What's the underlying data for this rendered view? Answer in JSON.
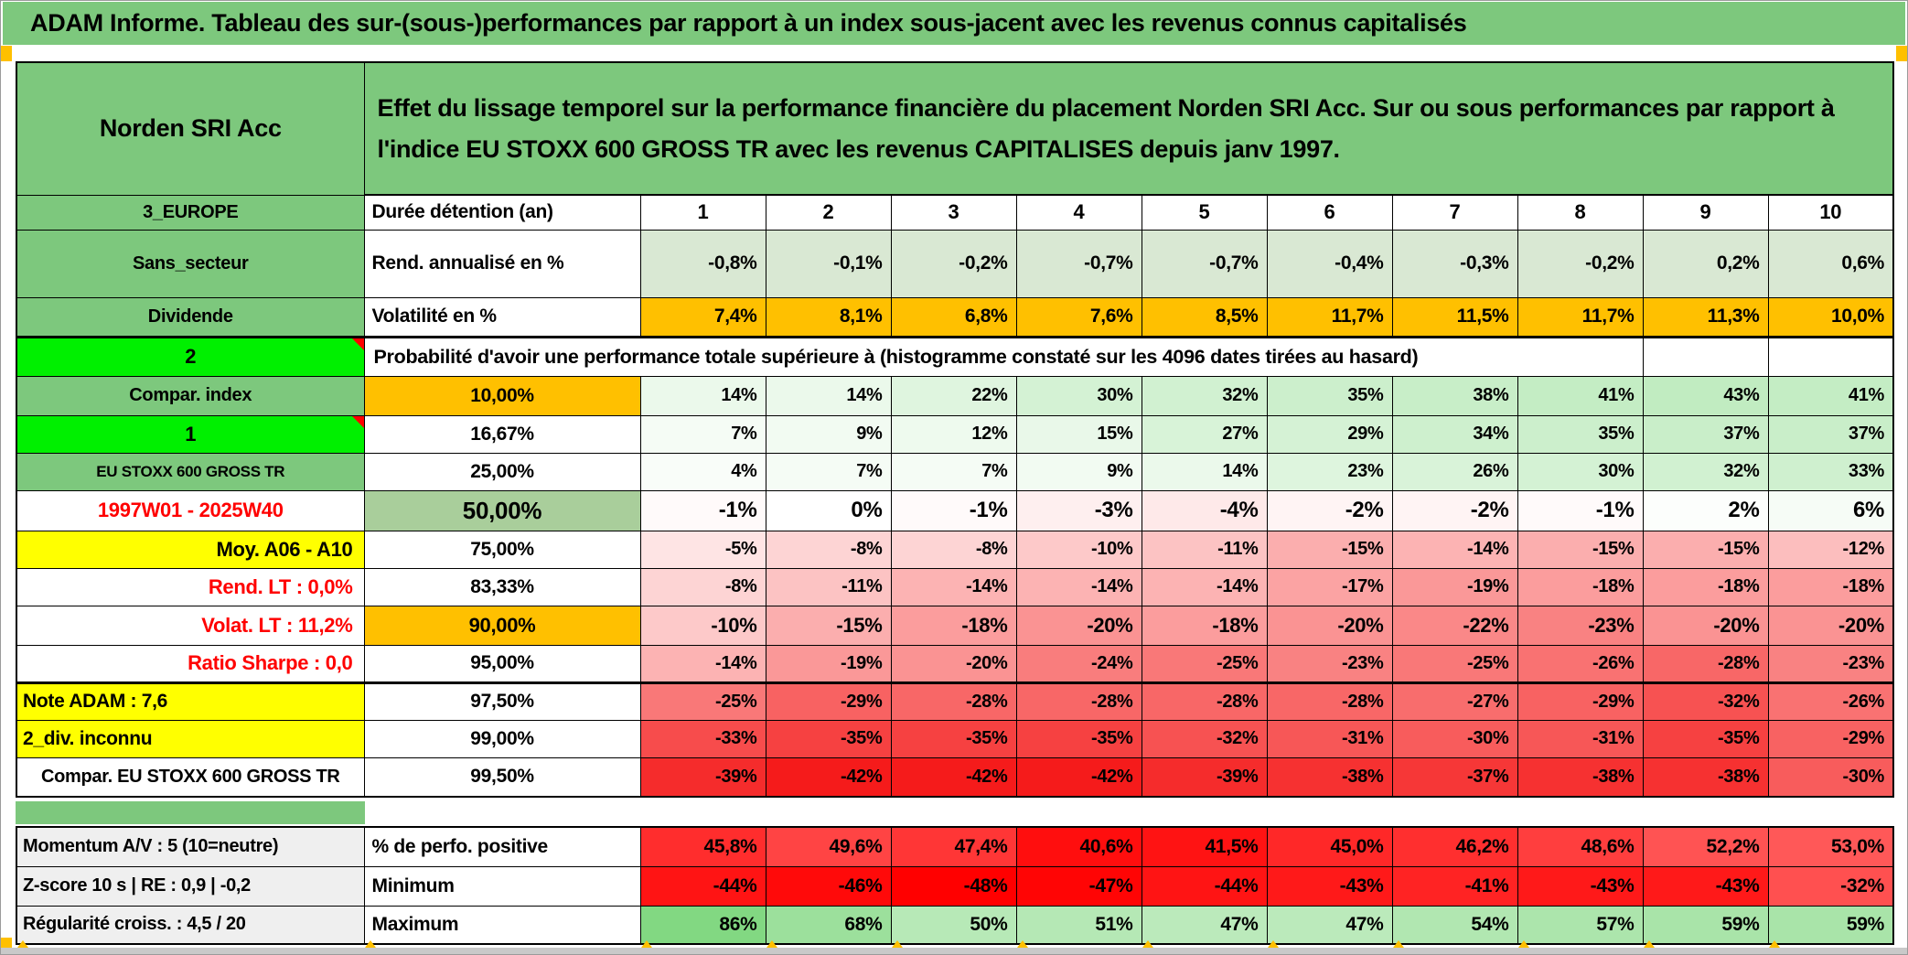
{
  "title": "ADAM Informe. Tableau des sur-(sous-)performances par rapport à un index sous-jacent avec les revenus connus capitalisés",
  "header": {
    "fund_name": "Norden SRI Acc",
    "description": "Effet du lissage temporel sur la performance financière du placement Norden SRI Acc. Sur ou sous performances par rapport à l'indice EU STOXX 600 GROSS TR avec les revenus CAPITALISES depuis janv 1997."
  },
  "colors": {
    "header_green": "#7DC87D",
    "bright_green": "#00F000",
    "orange": "#FFC000",
    "yellow": "#FFFF00",
    "sage_green": "#A9CE9B",
    "rend_row_green": "#D9E8D3",
    "gray_label": "#EFEFEF",
    "red_text": "#FF0000"
  },
  "table": {
    "prob_header": "Probabilité d'avoir une performance totale supérieure à (histogramme constaté sur les 4096 dates tirées au hasard)",
    "rows": [
      {
        "left": "3_EUROPE",
        "leftStyle": "green",
        "mid": "Durée détention (an)",
        "midStyle": "deflabel",
        "cellStyle": "colhead",
        "cells": [
          "1",
          "2",
          "3",
          "4",
          "5",
          "6",
          "7",
          "8",
          "9",
          "10"
        ]
      },
      {
        "left": "Sans_secteur",
        "leftStyle": "green",
        "mid": "Rend. annualisé en %",
        "midStyle": "deflabel",
        "cellStyle": "rend",
        "cells": [
          "-0,8%",
          "-0,1%",
          "-0,2%",
          "-0,7%",
          "-0,7%",
          "-0,4%",
          "-0,3%",
          "-0,2%",
          "0,2%",
          "0,6%"
        ]
      },
      {
        "left": "Dividende",
        "leftStyle": "green",
        "mid": "Volatilité en %",
        "midStyle": "deflabel",
        "cellStyle": "vol",
        "thick": true,
        "cells": [
          "7,4%",
          "8,1%",
          "6,8%",
          "7,6%",
          "8,5%",
          "11,7%",
          "11,5%",
          "11,7%",
          "11,3%",
          "10,0%"
        ]
      },
      {
        "left": "2",
        "leftStyle": "bright",
        "corner": true,
        "span": true
      },
      {
        "left": "Compar. index",
        "leftStyle": "green",
        "mid": "10,00%",
        "midStyle": "orangePct",
        "cellStyle": "prob",
        "cells": [
          "14%",
          "14%",
          "22%",
          "30%",
          "32%",
          "35%",
          "38%",
          "41%",
          "43%",
          "41%"
        ]
      },
      {
        "left": "1",
        "leftStyle": "bright",
        "corner": true,
        "mid": "16,67%",
        "midStyle": "pct",
        "cellStyle": "prob",
        "cells": [
          "7%",
          "9%",
          "12%",
          "15%",
          "27%",
          "29%",
          "34%",
          "35%",
          "37%",
          "37%"
        ]
      },
      {
        "left": "EU STOXX 600 GROSS TR",
        "leftStyle": "greenSmall",
        "mid": "25,00%",
        "midStyle": "pct",
        "cellStyle": "prob",
        "cells": [
          "4%",
          "7%",
          "7%",
          "9%",
          "14%",
          "23%",
          "26%",
          "30%",
          "32%",
          "33%"
        ]
      },
      {
        "left": "1997W01 - 2025W40",
        "leftStyle": "redCenter",
        "mid": "50,00%",
        "midStyle": "sageBig",
        "cellStyle": "probBig",
        "cells": [
          "-1%",
          "0%",
          "-1%",
          "-3%",
          "-4%",
          "-2%",
          "-2%",
          "-1%",
          "2%",
          "6%"
        ]
      },
      {
        "left": "Moy. A06 - A10",
        "leftStyle": "yellowRight",
        "mid": "75,00%",
        "midStyle": "pct",
        "cellStyle": "prob",
        "cells": [
          "-5%",
          "-8%",
          "-8%",
          "-10%",
          "-11%",
          "-15%",
          "-14%",
          "-15%",
          "-15%",
          "-12%"
        ]
      },
      {
        "left": "Rend. LT :   0,0%",
        "leftStyle": "redRight",
        "mid": "83,33%",
        "midStyle": "pct",
        "cellStyle": "prob",
        "cells": [
          "-8%",
          "-11%",
          "-14%",
          "-14%",
          "-14%",
          "-17%",
          "-19%",
          "-18%",
          "-18%",
          "-18%"
        ]
      },
      {
        "left": "Volat. LT :   11,2%",
        "leftStyle": "redRight",
        "mid": "90,00%",
        "midStyle": "orangePctBold",
        "cellStyle": "probBold",
        "cells": [
          "-10%",
          "-15%",
          "-18%",
          "-20%",
          "-18%",
          "-20%",
          "-22%",
          "-23%",
          "-20%",
          "-20%"
        ]
      },
      {
        "left": "Ratio Sharpe :   0,0",
        "leftStyle": "redRight",
        "mid": "95,00%",
        "midStyle": "pct",
        "cellStyle": "prob",
        "thick": true,
        "cells": [
          "-14%",
          "-19%",
          "-20%",
          "-24%",
          "-25%",
          "-23%",
          "-25%",
          "-26%",
          "-28%",
          "-23%"
        ]
      },
      {
        "left": "Note ADAM : 7,6",
        "leftStyle": "yellowLeft",
        "mid": "97,50%",
        "midStyle": "pct",
        "cellStyle": "prob",
        "cells": [
          "-25%",
          "-29%",
          "-28%",
          "-28%",
          "-28%",
          "-28%",
          "-27%",
          "-29%",
          "-32%",
          "-26%"
        ]
      },
      {
        "left": "2_div. inconnu",
        "leftStyle": "yellowLeft",
        "mid": "99,00%",
        "midStyle": "pct",
        "cellStyle": "prob",
        "cells": [
          "-33%",
          "-35%",
          "-35%",
          "-35%",
          "-32%",
          "-31%",
          "-30%",
          "-31%",
          "-35%",
          "-29%"
        ]
      },
      {
        "left": "Compar. EU STOXX 600 GROSS TR",
        "leftStyle": "plainCenter",
        "mid": "99,50%",
        "midStyle": "pct",
        "cellStyle": "prob",
        "cells": [
          "-39%",
          "-42%",
          "-42%",
          "-42%",
          "-39%",
          "-38%",
          "-37%",
          "-38%",
          "-38%",
          "-30%"
        ]
      }
    ]
  },
  "bottom": {
    "rows": [
      {
        "left": "Momentum A/V : 5 (10=neutre)",
        "leftStyle": "gray",
        "mid": "% de perfo. positive",
        "midStyle": "deflabel",
        "cellStyle": "pos",
        "cells": [
          "45,8%",
          "49,6%",
          "47,4%",
          "40,6%",
          "41,5%",
          "45,0%",
          "46,2%",
          "48,6%",
          "52,2%",
          "53,0%"
        ]
      },
      {
        "left": "Z-score 10 s | RE : 0,9 | -0,2",
        "leftStyle": "gray",
        "mid": "Minimum",
        "midStyle": "deflabel",
        "cellStyle": "min",
        "cells": [
          "-44%",
          "-46%",
          "-48%",
          "-47%",
          "-44%",
          "-43%",
          "-41%",
          "-43%",
          "-43%",
          "-32%"
        ]
      },
      {
        "left": "Régularité croiss. : 4,5 / 20",
        "leftStyle": "gray",
        "mid": "Maximum",
        "midStyle": "deflabel",
        "cellStyle": "max",
        "cells": [
          "86%",
          "68%",
          "50%",
          "51%",
          "47%",
          "47%",
          "54%",
          "57%",
          "59%",
          "59%"
        ]
      }
    ]
  }
}
